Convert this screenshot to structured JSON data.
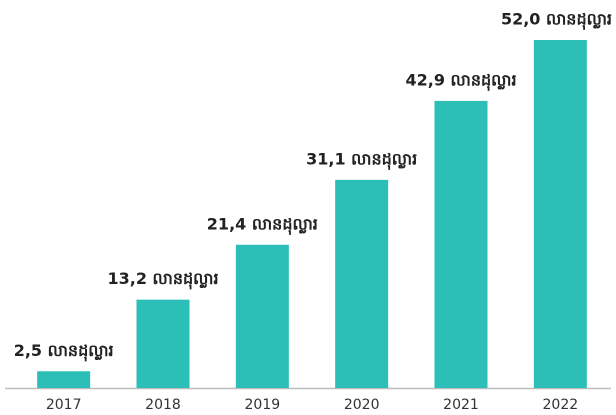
{
  "chart_data": {
    "type": "bar",
    "categories": [
      "2017",
      "2018",
      "2019",
      "2020",
      "2021",
      "2022"
    ],
    "values": [
      2.5,
      13.2,
      21.4,
      31.1,
      42.9,
      52.0
    ],
    "value_labels": [
      "2,5 លានដុល្លារ",
      "13,2 លានដុល្លារ",
      "21,4 លានដុល្លារ",
      "31,1 លានដុល្លារ",
      "42,9 លានដុល្លារ",
      "52,0 លានដុល្លារ"
    ],
    "color": "#2bbfb7"
  }
}
